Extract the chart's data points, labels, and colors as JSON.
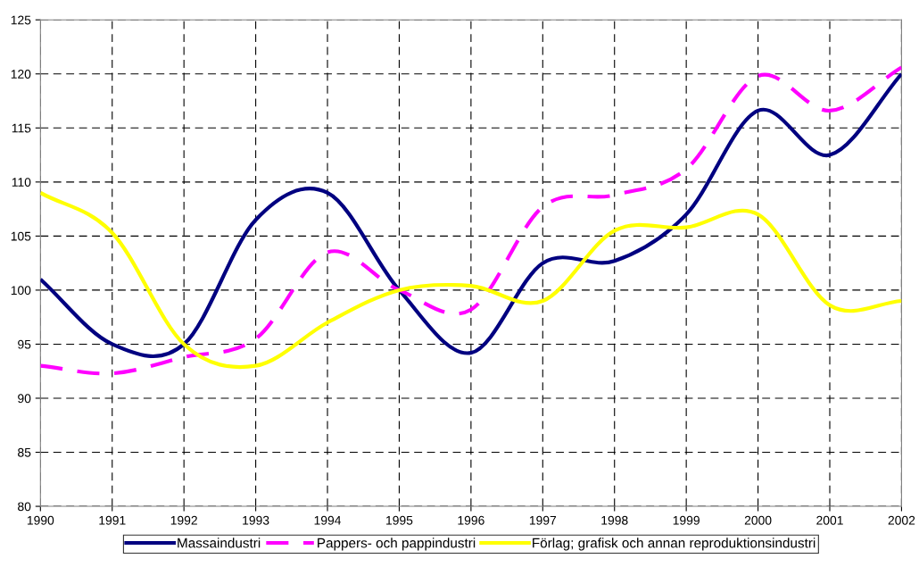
{
  "chart_data": {
    "type": "line",
    "x": [
      1990,
      1991,
      1992,
      1993,
      1994,
      1995,
      1996,
      1997,
      1998,
      1999,
      2000,
      2001,
      2002
    ],
    "series": [
      {
        "name": "Massaindustri",
        "color": "#000080",
        "line_style": "solid",
        "values": [
          101,
          95,
          95,
          106.5,
          109,
          100,
          94.2,
          102.5,
          102.7,
          107,
          116.6,
          112.5,
          120
        ]
      },
      {
        "name": "Pappers- och pappindustri",
        "color": "#ff00ff",
        "line_style": "dashed",
        "values": [
          93,
          92.3,
          93.8,
          95.5,
          103.5,
          100,
          98.2,
          107.7,
          108.8,
          111.2,
          119.8,
          116.6,
          120.6
        ]
      },
      {
        "name": "Förlag; grafisk och annan reproduktionsindustri",
        "color": "#ffff00",
        "line_style": "solid",
        "values": [
          109,
          105.3,
          95,
          93,
          97,
          100,
          100.4,
          99,
          105.5,
          105.8,
          107,
          98.6,
          99
        ]
      }
    ],
    "xlim": [
      1990,
      2002
    ],
    "xticks": [
      1990,
      1991,
      1992,
      1993,
      1994,
      1995,
      1996,
      1997,
      1998,
      1999,
      2000,
      2001,
      2002
    ],
    "ylim": [
      80,
      125
    ],
    "yticks": [
      80,
      85,
      90,
      95,
      100,
      105,
      110,
      115,
      120,
      125
    ],
    "grid": true,
    "legend": "bottom",
    "marker": "none"
  }
}
